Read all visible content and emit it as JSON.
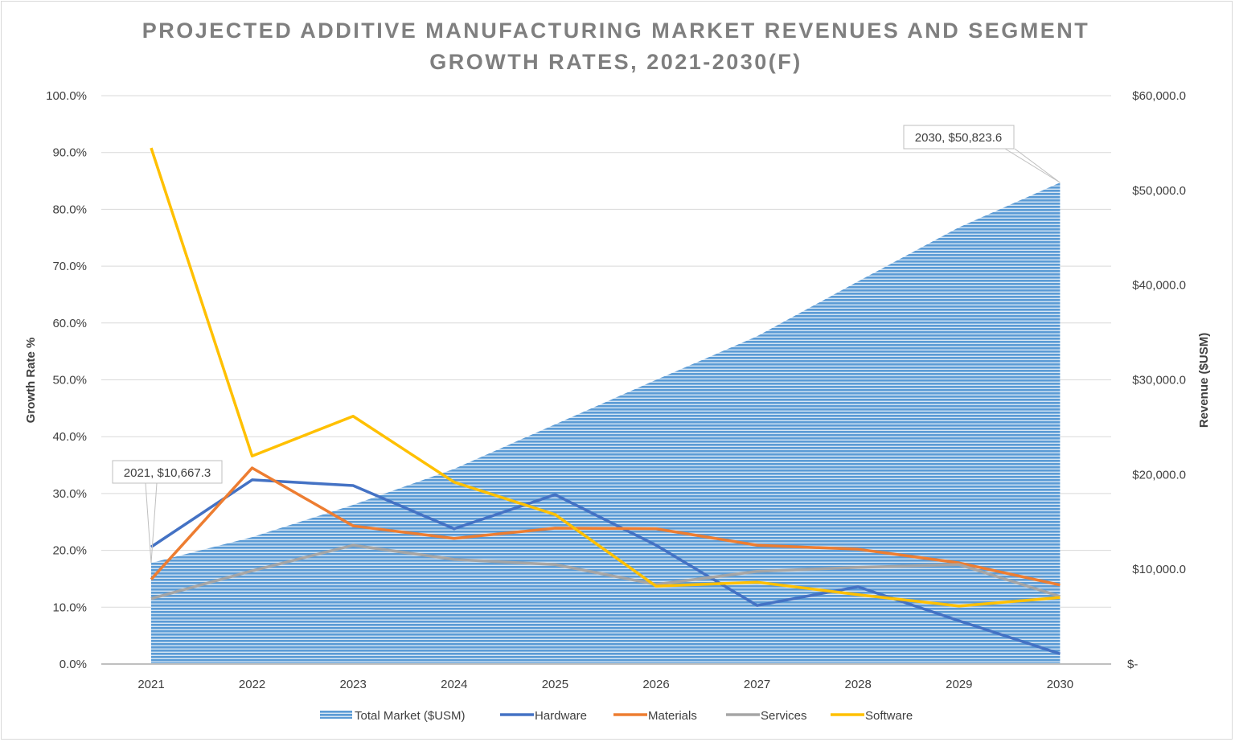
{
  "chart_data": {
    "type": "line+area",
    "title_line1": "PROJECTED ADDITIVE MANUFACTURING MARKET REVENUES AND SEGMENT",
    "title_line2": "GROWTH RATES, 2021-2030(F)",
    "categories": [
      "2021",
      "2022",
      "2023",
      "2024",
      "2025",
      "2026",
      "2027",
      "2028",
      "2029",
      "2030"
    ],
    "y_left": {
      "label": "Growth Rate %",
      "range": [
        0,
        100
      ],
      "ticks": [
        "0.0%",
        "10.0%",
        "20.0%",
        "30.0%",
        "40.0%",
        "50.0%",
        "60.0%",
        "70.0%",
        "80.0%",
        "90.0%",
        "100.0%"
      ]
    },
    "y_right": {
      "label": "Revenue ($USM)",
      "range": [
        0,
        60000
      ],
      "ticks": [
        "$-",
        "$10,000.0",
        "$20,000.0",
        "$30,000.0",
        "$40,000.0",
        "$50,000.0",
        "$60,000.0"
      ]
    },
    "grid": true,
    "legend": "bottom",
    "area_series": {
      "name": "Total Market ($USM)",
      "axis": "right",
      "color": "#5B9BD5",
      "values": [
        10667.3,
        13400,
        16800,
        20600,
        25300,
        30000,
        34600,
        40400,
        46100,
        50823.6
      ]
    },
    "series": [
      {
        "name": "Hardware",
        "color": "#4472C4",
        "values": [
          20.6,
          32.4,
          31.4,
          23.8,
          29.8,
          20.9,
          10.3,
          13.6,
          7.6,
          1.8
        ]
      },
      {
        "name": "Materials",
        "color": "#ED7D31",
        "values": [
          14.9,
          34.5,
          24.3,
          22.1,
          23.9,
          23.8,
          20.9,
          20.2,
          17.8,
          13.9
        ]
      },
      {
        "name": "Services",
        "color": "#A5A5A5",
        "values": [
          11.5,
          16.4,
          20.9,
          18.4,
          17.5,
          14.0,
          16.3,
          17.0,
          17.5,
          11.9
        ]
      },
      {
        "name": "Software",
        "color": "#FFC000",
        "values": [
          90.8,
          36.6,
          43.6,
          32.0,
          26.3,
          13.7,
          14.4,
          12.2,
          10.2,
          11.7
        ]
      }
    ],
    "annotations": [
      "2021,  $10,667.3",
      "2030,  $50,823.6"
    ]
  }
}
